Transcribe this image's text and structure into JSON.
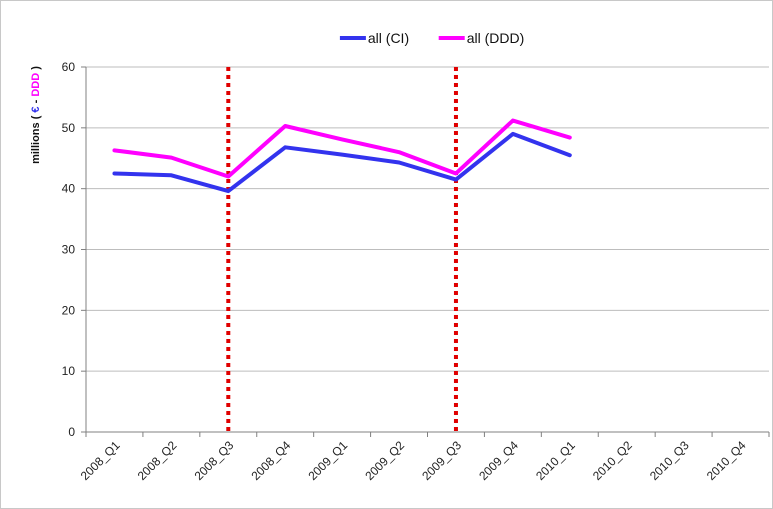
{
  "chart_data": {
    "type": "line",
    "categories": [
      "2008_Q1",
      "2008_Q2",
      "2008_Q3",
      "2008_Q4",
      "2009_Q1",
      "2009_Q2",
      "2009_Q3",
      "2009_Q4",
      "2010_Q1",
      "2010_Q2",
      "2010_Q3",
      "2010_Q4"
    ],
    "series": [
      {
        "name": "all (CI)",
        "color": "#3333ee",
        "values": [
          42.5,
          42.2,
          39.6,
          46.8,
          45.6,
          44.3,
          41.5,
          49.0,
          45.5,
          null,
          null,
          null
        ]
      },
      {
        "name": "all (DDD)",
        "color": "#ff00ff",
        "values": [
          46.3,
          45.1,
          42.0,
          50.3,
          48.1,
          46.0,
          42.5,
          51.2,
          48.4,
          null,
          null,
          null
        ]
      }
    ],
    "ylim": [
      0,
      60
    ],
    "yticks": [
      0,
      10,
      20,
      30,
      40,
      50,
      60
    ],
    "ylabel": {
      "prefix": "millions (",
      "euro": "€",
      "sep": " - ",
      "ddd": "DDD",
      "suffix": ")"
    },
    "ylabel_colors": {
      "main": "#111111",
      "euro": "#3333ee",
      "ddd": "#ff00ff"
    },
    "vertical_markers": [
      {
        "category": "2008_Q3",
        "color": "#e00000",
        "style": "dotted"
      },
      {
        "category": "2009_Q3",
        "color": "#e00000",
        "style": "dotted"
      }
    ],
    "grid": true,
    "legend_position": "top-center"
  }
}
